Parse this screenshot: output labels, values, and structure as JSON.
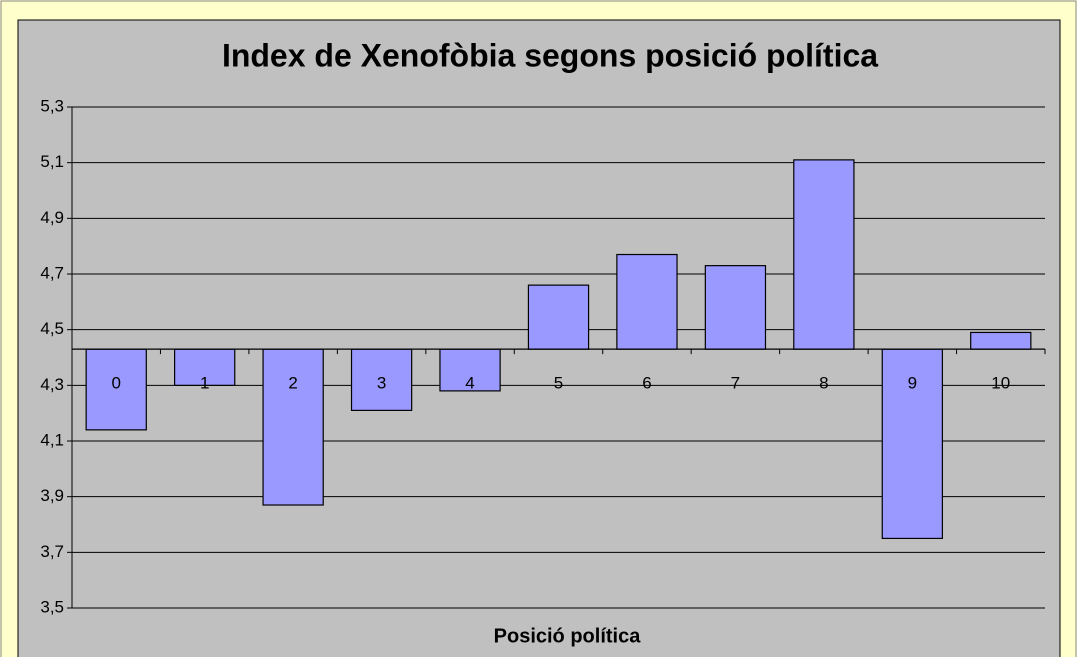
{
  "chart_data": {
    "type": "bar",
    "title": "Index de Xenofòbia segons posició política",
    "x_label": "Posició política",
    "categories": [
      "0",
      "1",
      "2",
      "3",
      "4",
      "5",
      "6",
      "7",
      "8",
      "9",
      "10"
    ],
    "values": [
      4.14,
      4.3,
      3.87,
      4.21,
      4.28,
      4.66,
      4.77,
      4.73,
      5.11,
      3.75,
      4.49
    ],
    "color": "#9999ff",
    "baseline": 4.43,
    "ylim": [
      3.5,
      5.3
    ],
    "yticks": [
      {
        "value": 3.5,
        "label": "3,5"
      },
      {
        "value": 3.7,
        "label": "3,7"
      },
      {
        "value": 3.9,
        "label": "3,9"
      },
      {
        "value": 4.1,
        "label": "4,1"
      },
      {
        "value": 4.3,
        "label": "4,3"
      },
      {
        "value": 4.5,
        "label": "4,5"
      },
      {
        "value": 4.7,
        "label": "4,7"
      },
      {
        "value": 4.9,
        "label": "4,9"
      },
      {
        "value": 5.1,
        "label": "5,1"
      },
      {
        "value": 5.3,
        "label": "5,3"
      }
    ],
    "grid": true
  }
}
